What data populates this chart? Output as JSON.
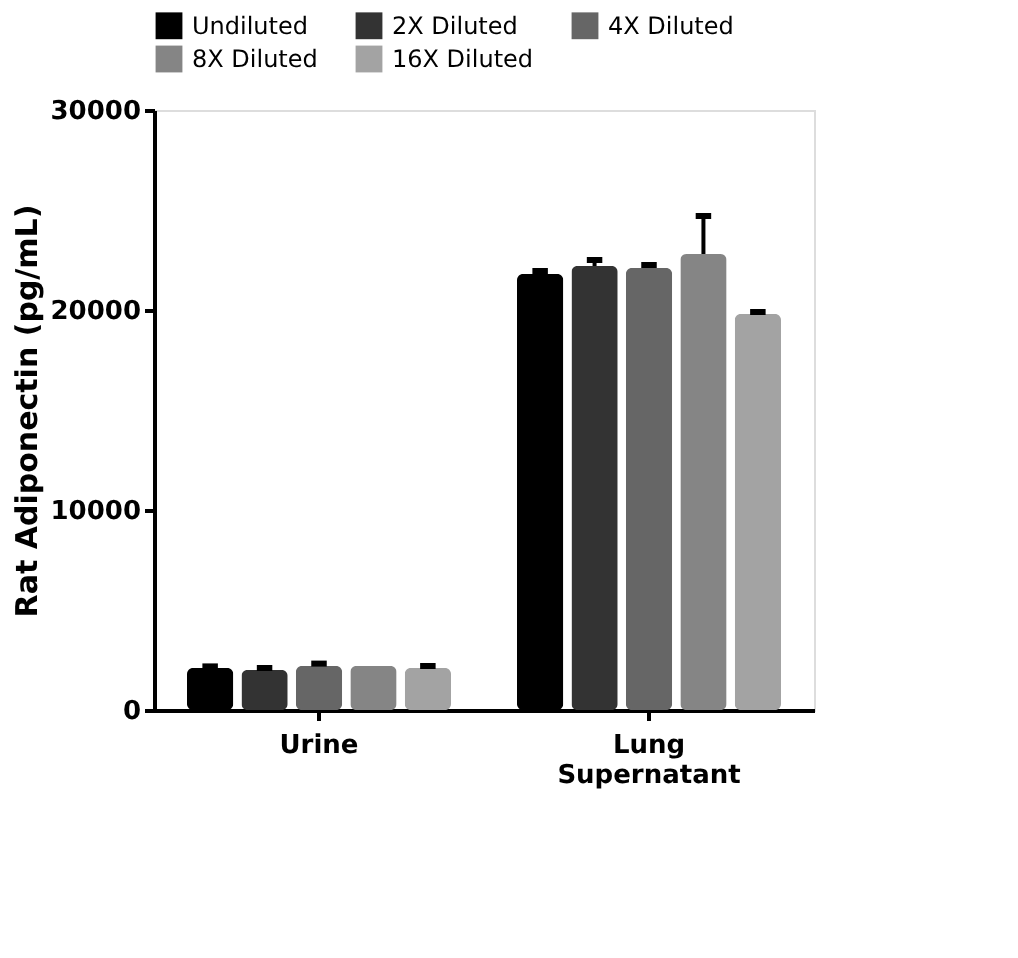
{
  "chart_data": {
    "type": "bar",
    "ylabel": "Rat Adiponectin (pg/mL)",
    "categories": [
      "Urine",
      "Lung\nSupernatant"
    ],
    "series": [
      {
        "name": "Undiluted",
        "color": "#000000",
        "values": [
          2100,
          21800
        ],
        "errors": [
          80,
          150
        ]
      },
      {
        "name": "2X Diluted",
        "color": "#333333",
        "values": [
          2000,
          22200
        ],
        "errors": [
          100,
          300
        ]
      },
      {
        "name": "4X Diluted",
        "color": "#666666",
        "values": [
          2200,
          22100
        ],
        "errors": [
          120,
          150
        ]
      },
      {
        "name": "8X Diluted",
        "color": "#858585",
        "values": [
          2200,
          22800
        ],
        "errors": [
          null,
          1900
        ]
      },
      {
        "name": "16X Diluted",
        "color": "#a3a3a3",
        "values": [
          2100,
          19800
        ],
        "errors": [
          100,
          100
        ]
      }
    ],
    "ylim": [
      0,
      30000
    ],
    "yticks": [
      0,
      10000,
      20000,
      30000
    ],
    "grid": false,
    "legend": "top"
  }
}
